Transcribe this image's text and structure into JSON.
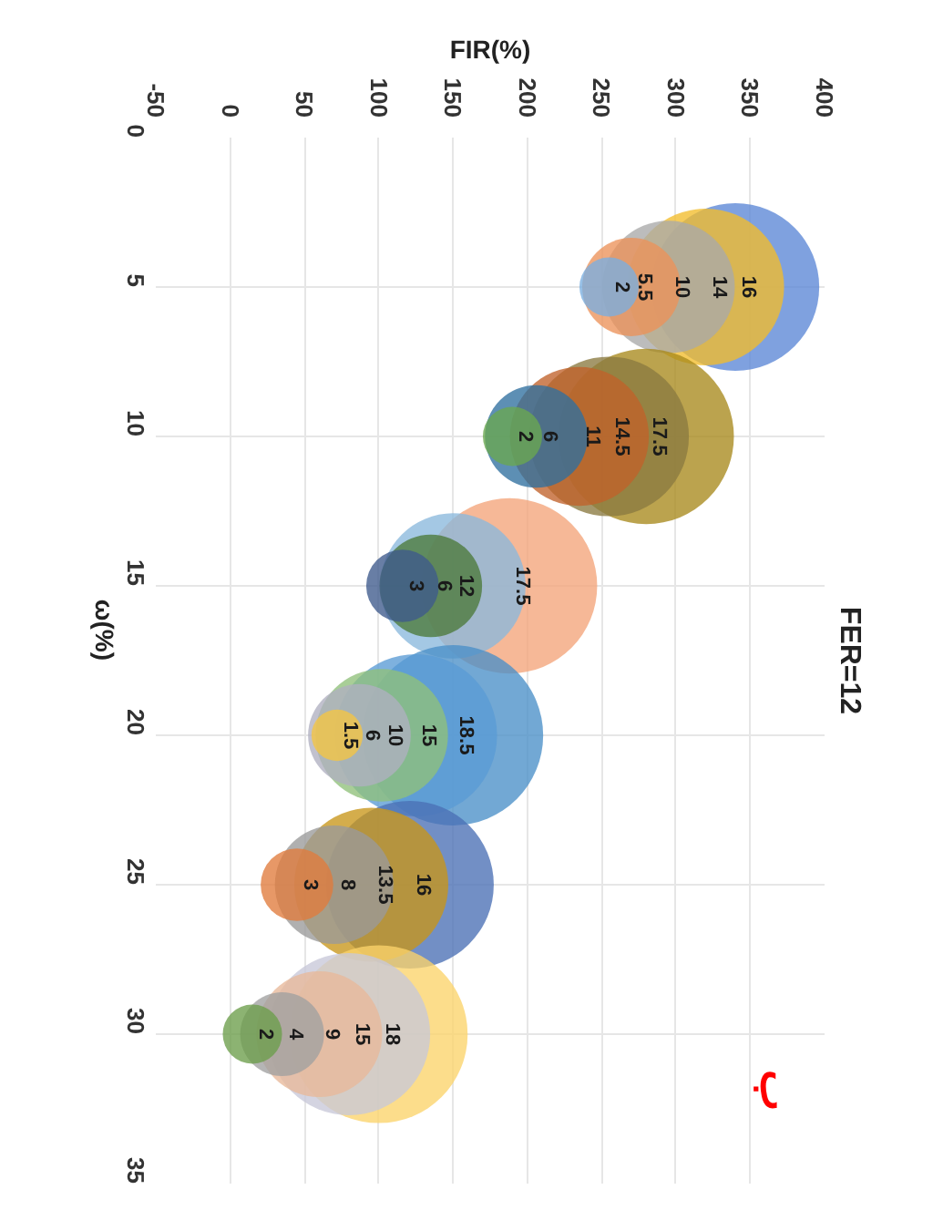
{
  "chart_data": {
    "type": "bubble",
    "title": "FER=12",
    "xlabel": "FIR(%)",
    "ylabel": "ω(%)",
    "xlim": [
      -50,
      400
    ],
    "xticks": [
      -50,
      0,
      50,
      100,
      150,
      200,
      250,
      300,
      350,
      400
    ],
    "ylim": [
      35,
      0
    ],
    "yticks": [
      0,
      5,
      10,
      15,
      20,
      25,
      30,
      35
    ],
    "grid": true,
    "annotations": [
      "ب"
    ],
    "series": [
      {
        "x": [
          340,
          320,
          295,
          270,
          255
        ],
        "values": [
          5,
          5,
          5,
          5,
          5
        ],
        "sizes": [
          16,
          14,
          10,
          5.5,
          2
        ],
        "value_labels": [
          "16",
          "14",
          "10",
          "5.5",
          "2"
        ],
        "colors": [
          "#5b87d6",
          "#f2bd2c",
          "#a9a9a9",
          "#ec925a",
          "#7aaee0"
        ]
      },
      {
        "x": [
          280,
          255,
          235,
          206,
          190
        ],
        "values": [
          10,
          10,
          10,
          10,
          10
        ],
        "sizes": [
          17.5,
          14.5,
          11,
          6,
          2
        ],
        "value_labels": [
          "17.5",
          "14.5",
          "11",
          "6",
          "2"
        ],
        "colors": [
          "#a8891c",
          "#8a7a40",
          "#c0622a",
          "#2f6f9f",
          "#6aa84f"
        ]
      },
      {
        "x": [
          188,
          150,
          135,
          116
        ],
        "values": [
          15,
          15,
          15,
          15
        ],
        "sizes": [
          17.5,
          12,
          6,
          3
        ],
        "value_labels": [
          "17.5",
          "12",
          "6",
          "3"
        ],
        "colors": [
          "#f4a47a",
          "#8ab8dc",
          "#4b7a3a",
          "#3d5a8c"
        ]
      },
      {
        "x": [
          150,
          125,
          102,
          87,
          72
        ],
        "values": [
          20,
          20,
          20,
          20,
          20
        ],
        "sizes": [
          18.5,
          15,
          10,
          6,
          1.5
        ],
        "value_labels": [
          "18.5",
          "15",
          "10",
          "6",
          "1.5"
        ],
        "colors": [
          "#4a90c8",
          "#5a9bd5",
          "#8fc07a",
          "#b0b0c0",
          "#f5c542"
        ]
      },
      {
        "x": [
          121,
          95,
          70,
          45
        ],
        "values": [
          25,
          25,
          25,
          25
        ],
        "sizes": [
          16,
          13.5,
          8,
          3
        ],
        "value_labels": [
          "16",
          "13.5",
          "8",
          "3"
        ],
        "colors": [
          "#4a6fb5",
          "#c8961a",
          "#9a9a9a",
          "#e07b3c"
        ]
      },
      {
        "x": [
          100,
          80,
          60,
          35,
          15
        ],
        "values": [
          30,
          30,
          30,
          30,
          30
        ],
        "sizes": [
          18,
          15,
          9,
          4,
          2
        ],
        "value_labels": [
          "18",
          "15",
          "9",
          "4",
          "2"
        ],
        "colors": [
          "#fbd46a",
          "#c8c8d8",
          "#e8b89a",
          "#a0a0a0",
          "#6b9e4a"
        ]
      }
    ]
  }
}
